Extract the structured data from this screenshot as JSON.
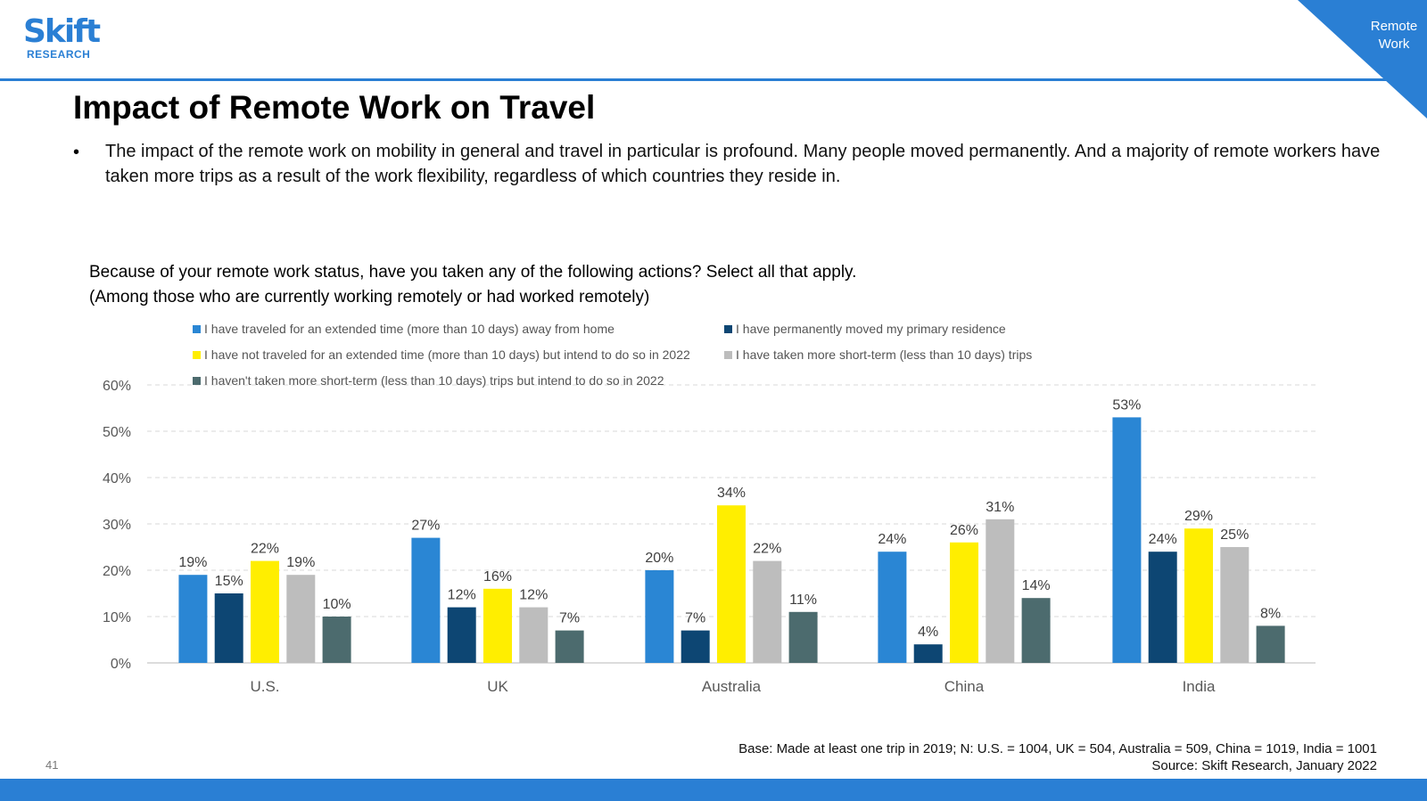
{
  "brand": {
    "name": "Skift",
    "sub": "RESEARCH",
    "color": "#2a7fd4"
  },
  "corner_tag": {
    "line1": "Remote",
    "line2": "Work"
  },
  "title": "Impact of Remote Work on Travel",
  "bullet": "The impact of the remote work on mobility in general and travel in particular is profound. Many people moved permanently. And a majority of remote workers have taken more trips as a result of the work flexibility, regardless of which countries they reside in.",
  "question": {
    "line1": "Because of your remote work status, have you taken any of the following actions? Select all that apply.",
    "line2": "(Among those who are currently working remotely or had worked remotely)"
  },
  "chart_data": {
    "type": "bar",
    "ylim": [
      0,
      60
    ],
    "yticks": [
      "0%",
      "10%",
      "20%",
      "30%",
      "40%",
      "50%",
      "60%"
    ],
    "grid": true,
    "legend_position": "top-left",
    "categories": [
      "U.S.",
      "UK",
      "Australia",
      "China",
      "India"
    ],
    "series": [
      {
        "name": "I have traveled for an extended time (more than 10 days) away from home",
        "color": "#2a86d4",
        "values": [
          19,
          27,
          20,
          24,
          53
        ]
      },
      {
        "name": "I have permanently moved my primary residence",
        "color": "#0d4673",
        "values": [
          15,
          12,
          7,
          4,
          24
        ]
      },
      {
        "name": "I have not traveled for an extended time (more than 10 days) but intend to do so in 2022",
        "color": "#ffee00",
        "values": [
          22,
          16,
          34,
          26,
          29
        ]
      },
      {
        "name": "I have taken more short-term (less than 10 days) trips",
        "color": "#bdbdbd",
        "values": [
          19,
          12,
          22,
          31,
          25
        ]
      },
      {
        "name": "I haven't taken more short-term (less than 10 days) trips but intend to do so in 2022",
        "color": "#4c6b6e",
        "values": [
          10,
          7,
          11,
          14,
          8
        ]
      }
    ],
    "value_suffix": "%"
  },
  "base_note": {
    "line1": "Base: Made at least one trip in 2019; N: U.S. = 1004, UK = 504, Australia = 509, China = 1019, India = 1001",
    "line2": "Source: Skift Research, January 2022"
  },
  "page_number": "41"
}
